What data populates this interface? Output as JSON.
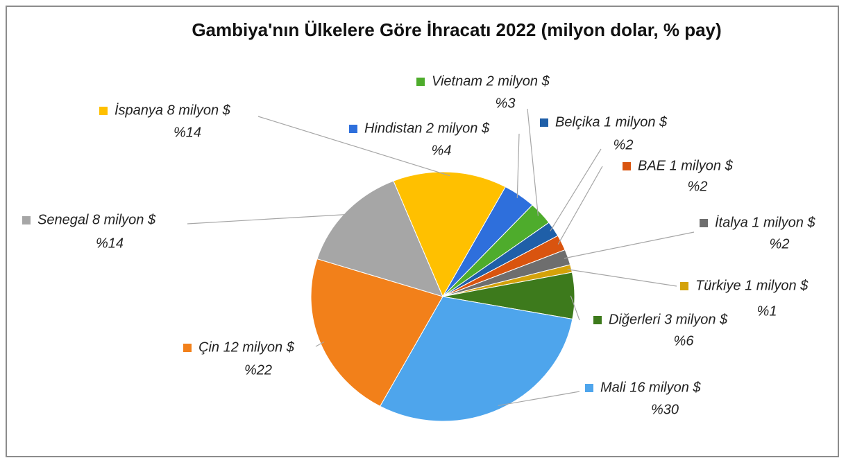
{
  "chart_data": {
    "type": "pie",
    "title": "Gambiya'nın Ülkelere Göre İhracatı 2022 (milyon dolar, % pay)",
    "categories": [
      "İspanya 8 milyon $",
      "Hindistan 2 milyon $",
      "Vietnam 2 milyon $",
      "Belçika 1 milyon $",
      "BAE 1 milyon $",
      "İtalya 1 milyon $",
      "Türkiye 1 milyon $",
      "Diğerleri 3 milyon $",
      "Mali 16 milyon $",
      "Çin 12 milyon $",
      "Senegal 8 milyon $"
    ],
    "values": [
      14,
      4,
      3,
      2,
      2,
      2,
      1,
      6,
      30,
      22,
      14
    ],
    "value_labels": [
      "%14",
      "%4",
      "%3",
      "%2",
      "%2",
      "%2",
      "%1",
      "%6",
      "%30",
      "%22",
      "%14"
    ],
    "colors": [
      "#ffc000",
      "#2e6fdc",
      "#4eac2c",
      "#1f5fa8",
      "#d9540f",
      "#6e6e6e",
      "#d4a20a",
      "#3d7a1c",
      "#4ea5ec",
      "#f2801a",
      "#a6a6a6"
    ]
  }
}
